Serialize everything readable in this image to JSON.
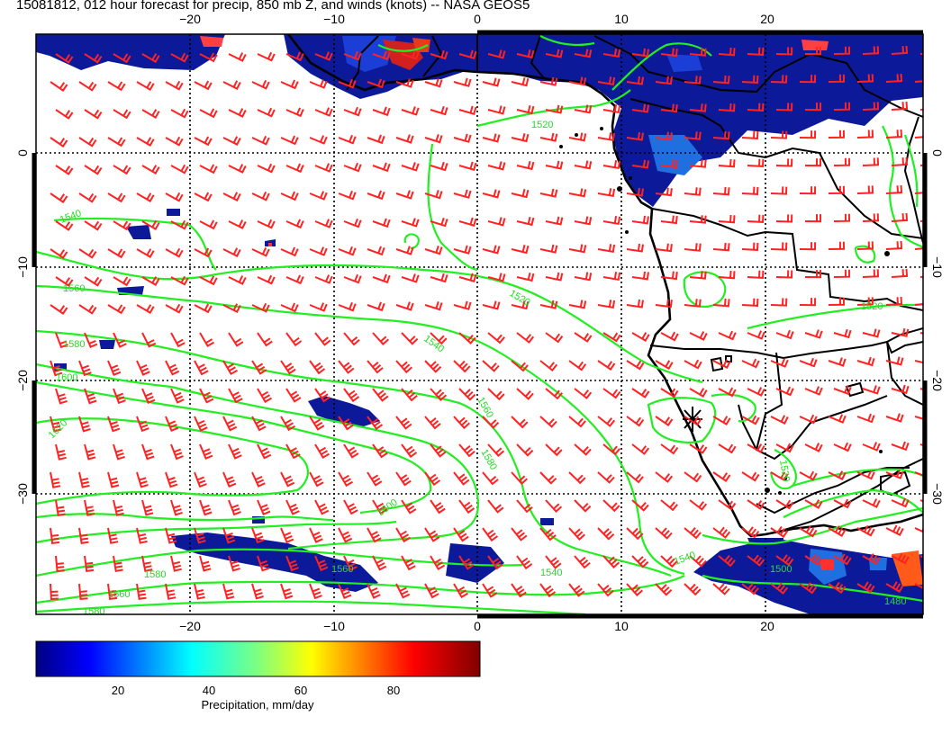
{
  "title": "15081812, 012 hour forecast for precip, 850 mb Z, and winds (knots) -- NASA GEOS5",
  "map": {
    "lon_ticks": [
      "−20",
      "−10",
      "0",
      "10",
      "20"
    ],
    "lat_ticks": [
      "0",
      "−10",
      "−20",
      "−30"
    ],
    "contour_labels": [
      "1520",
      "1520",
      "1520",
      "1540",
      "1540",
      "1540",
      "1560",
      "1560",
      "1560",
      "1560",
      "1580",
      "1580",
      "1580",
      "1600",
      "1600",
      "1620",
      "1580",
      "1540",
      "1500",
      "1480",
      "1520"
    ],
    "colors": {
      "wind_barb": "#ff2222",
      "contour": "#22ee22",
      "coastline": "#000000",
      "precip_low": "#000080",
      "precip_high": "#800000"
    }
  },
  "colorbar": {
    "ticks": [
      "20",
      "40",
      "60",
      "80"
    ],
    "label": "Precipitation, mm/day"
  }
}
